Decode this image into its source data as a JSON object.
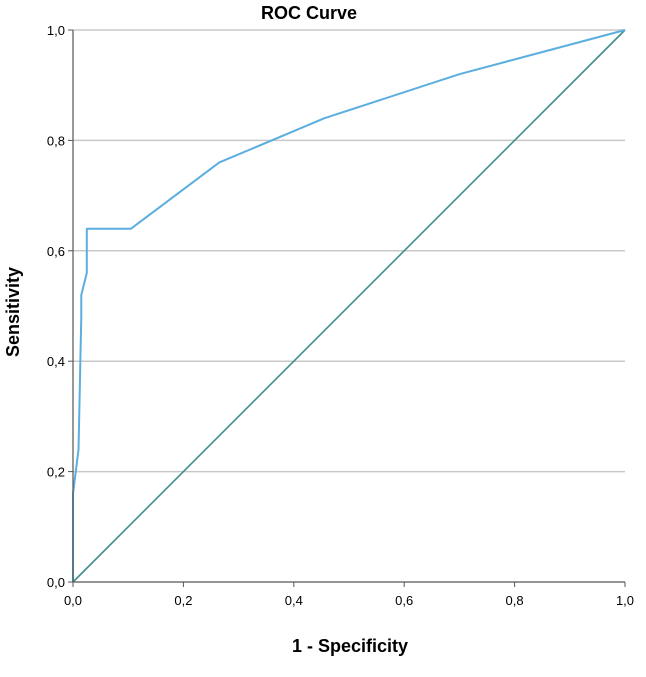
{
  "chart_data": {
    "type": "line",
    "title": "ROC Curve",
    "xlabel": "1 - Specificity",
    "ylabel": "Sensitivity",
    "xlim": [
      0,
      1
    ],
    "ylim": [
      0,
      1
    ],
    "x_ticks": [
      "0,0",
      "0,2",
      "0,4",
      "0,6",
      "0,8",
      "1,0"
    ],
    "y_ticks": [
      "0,0",
      "0,2",
      "0,4",
      "0,6",
      "0,8",
      "1,0"
    ],
    "grid": "horizontal",
    "series": [
      {
        "color": "#5aaee0",
        "x": [
          0,
          0,
          0.005,
          0.01,
          0.015,
          0.015,
          0.025,
          0.025,
          0.105,
          0.265,
          0.455,
          0.7,
          1.0
        ],
        "y": [
          0,
          0.16,
          0.2,
          0.24,
          0.48,
          0.52,
          0.56,
          0.64,
          0.64,
          0.76,
          0.84,
          0.92,
          1.0
        ]
      },
      {
        "color": "#3f8c8c",
        "x": [
          0,
          1
        ],
        "y": [
          0,
          1
        ]
      }
    ]
  }
}
